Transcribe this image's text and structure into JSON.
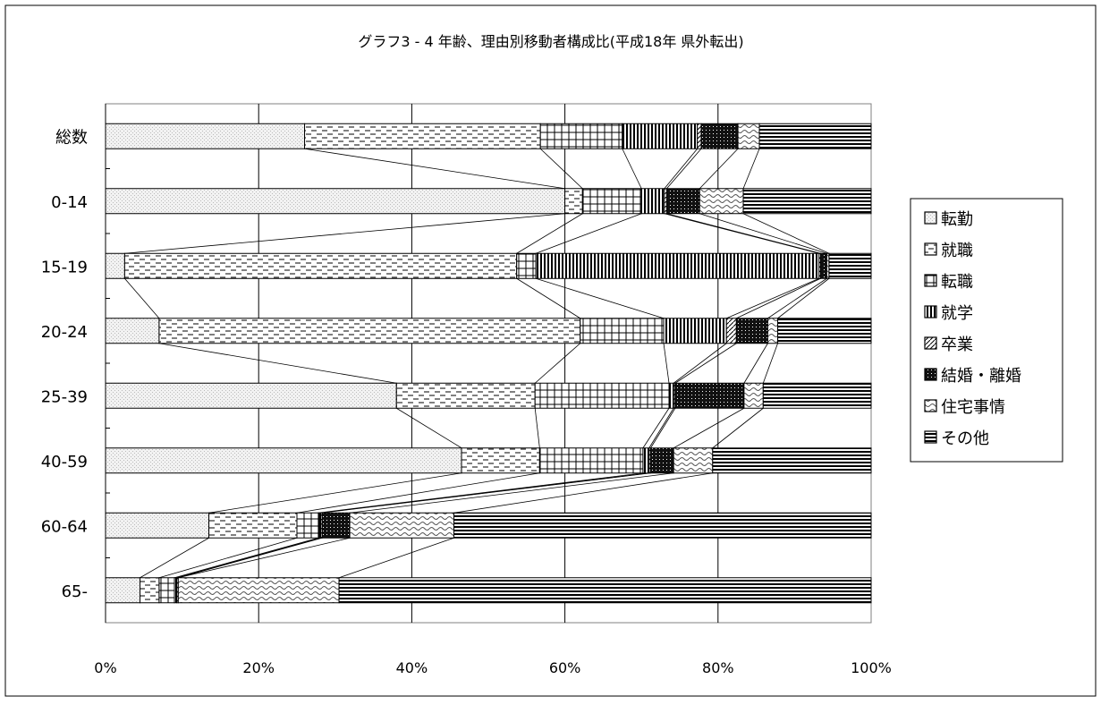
{
  "chart_data": {
    "type": "bar",
    "orientation": "horizontal",
    "stacked": "percent",
    "title": "グラフ3 - 4 年齢、理由別移動者構成比(平成18年 県外転出)",
    "categories": [
      "総数",
      "0-14",
      "15-19",
      "20-24",
      "25-39",
      "40-59",
      "60-64",
      "65-"
    ],
    "xlim": [
      0,
      100
    ],
    "x_ticks": [
      "0%",
      "20%",
      "40%",
      "60%",
      "80%",
      "100%"
    ],
    "grid": true,
    "series_lines": true,
    "legend_position": "right",
    "series": [
      {
        "name": "転勤",
        "pattern": "dots",
        "values": [
          26.0,
          60.0,
          2.5,
          7.0,
          38.0,
          46.5,
          13.5,
          4.5
        ]
      },
      {
        "name": "就職",
        "pattern": "dashes",
        "values": [
          30.8,
          2.3,
          51.2,
          55.0,
          18.1,
          10.2,
          11.5,
          2.5
        ]
      },
      {
        "name": "転職",
        "pattern": "grid",
        "values": [
          10.7,
          7.7,
          2.5,
          10.9,
          17.5,
          13.5,
          2.8,
          2.0
        ]
      },
      {
        "name": "就学",
        "pattern": "vlines",
        "values": [
          9.8,
          3.0,
          37.0,
          8.2,
          0.6,
          0.8,
          0.3,
          0.3
        ]
      },
      {
        "name": "卒業",
        "pattern": "diag",
        "values": [
          0.5,
          0.3,
          0.2,
          1.3,
          0.2,
          0.2,
          0.2,
          0.2
        ]
      },
      {
        "name": "結婚・離婚",
        "pattern": "dark",
        "values": [
          4.8,
          4.3,
          0.8,
          4.1,
          9.0,
          3.0,
          3.6,
          0.0
        ]
      },
      {
        "name": "住宅事情",
        "pattern": "wave",
        "values": [
          2.8,
          5.7,
          0.3,
          1.3,
          2.5,
          5.1,
          13.6,
          21.0
        ]
      },
      {
        "name": "その他",
        "pattern": "hlines",
        "values": [
          14.6,
          16.7,
          5.5,
          12.2,
          14.1,
          20.7,
          54.5,
          69.5
        ]
      }
    ]
  },
  "legend": {
    "icons": [
      "□",
      "⊟",
      "⊞",
      "Ⅲ",
      "◪",
      "■",
      "▧",
      "⊟"
    ]
  }
}
